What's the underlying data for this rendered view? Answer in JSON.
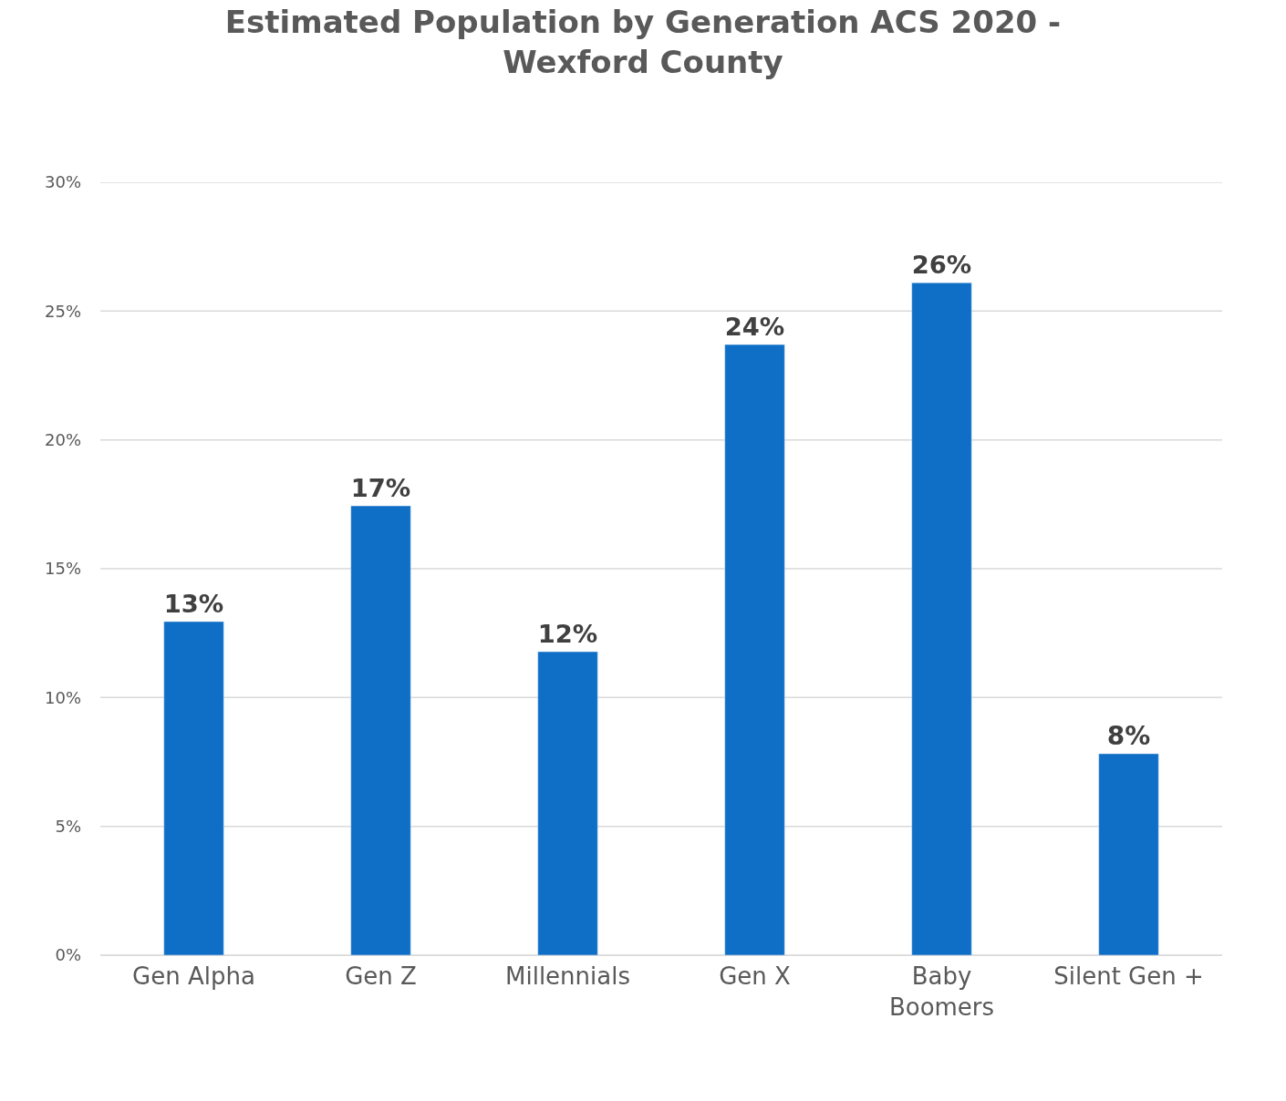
{
  "chart_data": {
    "type": "bar",
    "title": "Estimated Population by Generation ACS 2020 -\nWexford County",
    "categories": [
      "Gen Alpha",
      "Gen Z",
      "Millennials",
      "Gen X",
      "Baby\nBoomers",
      "Silent Gen +"
    ],
    "values": [
      12.95,
      17.44,
      11.78,
      23.7,
      26.1,
      7.82
    ],
    "value_labels": [
      "13%",
      "17%",
      "12%",
      "24%",
      "26%",
      "8%"
    ],
    "color": "#0f6fc6",
    "ylim": [
      0,
      30
    ],
    "yticks": [
      {
        "value": 0,
        "label": "0%"
      },
      {
        "value": 5,
        "label": "5%"
      },
      {
        "value": 10,
        "label": "10%"
      },
      {
        "value": 15,
        "label": "15%"
      },
      {
        "value": 20,
        "label": "20%"
      },
      {
        "value": 25,
        "label": "25%"
      },
      {
        "value": 30,
        "label": "30%"
      }
    ],
    "grid": "y"
  }
}
